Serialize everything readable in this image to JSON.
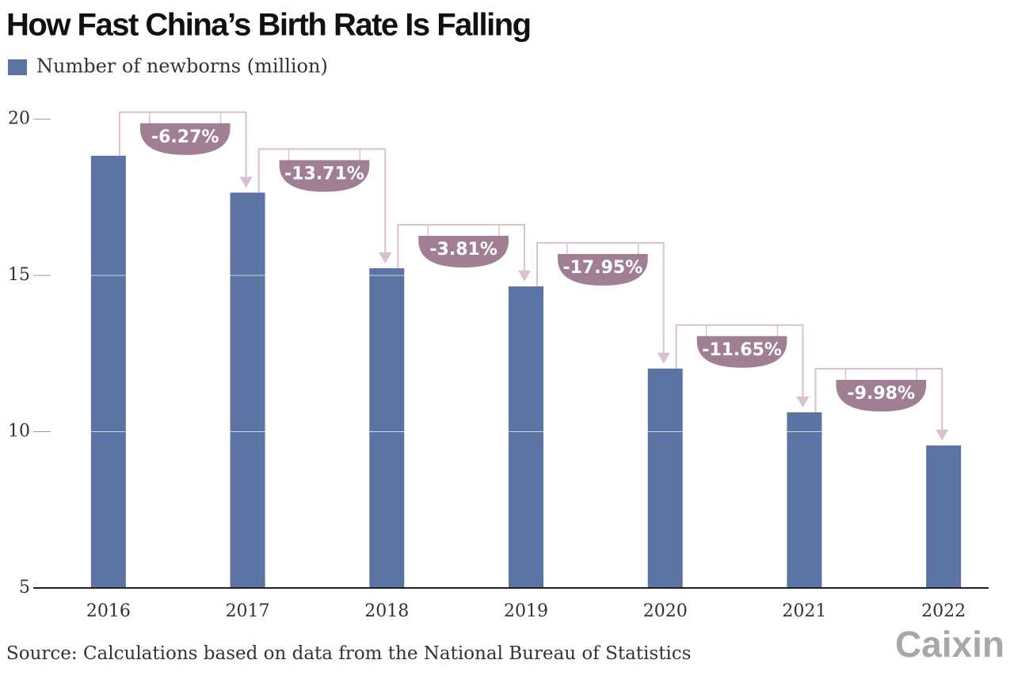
{
  "chart_data": {
    "type": "bar",
    "title": "How Fast China’s Birth Rate Is Falling",
    "legend": "Number of newborns (million)",
    "categories": [
      "2016",
      "2017",
      "2018",
      "2019",
      "2020",
      "2021",
      "2022"
    ],
    "values": [
      18.83,
      17.65,
      15.23,
      14.65,
      12.02,
      10.62,
      9.56
    ],
    "color": "#5b74a4",
    "annotations": [
      "-6.27%",
      "-13.71%",
      "-3.81%",
      "-17.95%",
      "-11.65%",
      "-9.98%"
    ],
    "annotation_color": "#a07f94",
    "ylim": [
      5,
      20.8
    ],
    "yticks": [
      5,
      10,
      15,
      20
    ],
    "grid": true,
    "source": "Source: Calculations based on data from the National Bureau of Statistics",
    "logo": "Caixin"
  }
}
